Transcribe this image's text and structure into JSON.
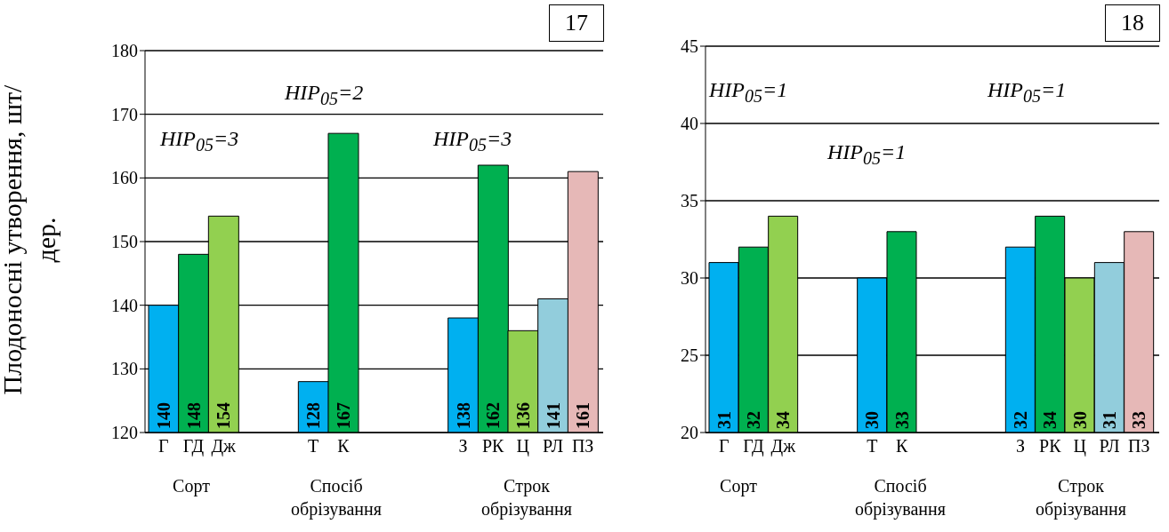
{
  "chart_data": [
    {
      "type": "bar",
      "title": "17",
      "ylabel": "Плодоносні утворення, шт/дер.",
      "categories": [
        "Г",
        "ГД",
        "Дж",
        null,
        null,
        "Т",
        "К",
        null,
        null,
        null,
        "З",
        "РК",
        "Ц",
        "РЛ",
        "ПЗ"
      ],
      "values": [
        140,
        148,
        154,
        null,
        null,
        128,
        167,
        null,
        null,
        null,
        138,
        162,
        136,
        141,
        161
      ],
      "colors": [
        "#00b0f0",
        "#00b050",
        "#92d050",
        null,
        null,
        "#00b0f0",
        "#00b050",
        null,
        null,
        null,
        "#00b0f0",
        "#00b050",
        "#92d050",
        "#92cddc",
        "#e6b8b7"
      ],
      "ylim": [
        120,
        180
      ],
      "yticks": [
        120,
        130,
        140,
        150,
        160,
        170,
        180
      ],
      "grid": "y",
      "data_labels": true,
      "annotations": [
        "HIP$_{05}$=3",
        "HIP$_{05}$=2",
        "HIP$_{05}$=3",
        "Сорт",
        "Спосіб обрізування",
        "Строк обрізування"
      ]
    },
    {
      "type": "bar",
      "title": "18",
      "categories": [
        "Г",
        "ГД",
        "Дж",
        null,
        null,
        "Т",
        "К",
        null,
        null,
        null,
        "З",
        "РК",
        "Ц",
        "РЛ",
        "ПЗ"
      ],
      "values": [
        31,
        32,
        34,
        null,
        null,
        30,
        33,
        null,
        null,
        null,
        32,
        34,
        30,
        31,
        33
      ],
      "colors": [
        "#00b0f0",
        "#00b050",
        "#92d050",
        null,
        null,
        "#00b0f0",
        "#00b050",
        null,
        null,
        null,
        "#00b0f0",
        "#00b050",
        "#92d050",
        "#92cddc",
        "#e6b8b7"
      ],
      "ylim": [
        20,
        45
      ],
      "yticks": [
        20,
        25,
        30,
        35,
        40,
        45
      ],
      "grid": "y",
      "data_labels": true,
      "annotations": [
        "HIP$_{05}$=1",
        "HIP$_{05}$=1",
        "HIP$_{05}$=1",
        "Сорт",
        "Спосіб обрізування",
        "Строк обрізування"
      ]
    }
  ]
}
